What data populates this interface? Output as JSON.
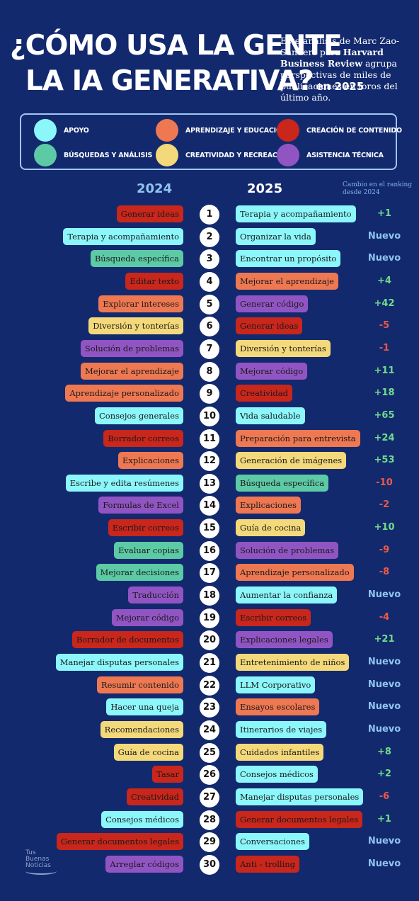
{
  "title": {
    "line1": "¿CÓMO USA LA GENTE",
    "line2": "LA IA GENERATIVA?",
    "year": "en 2025"
  },
  "intro": {
    "part1": "Este análisis de Marc Zao-Sanders para ",
    "bold": "Harvard Business Review",
    "part2": " agrupa perspectivas de miles de publicaciones en foros del último año."
  },
  "colors": {
    "apoyo": "#8cf7fb",
    "aprendizaje": "#ee7852",
    "creacion": "#c9261c",
    "busquedas": "#5dcaa6",
    "creatividad": "#f4d97b",
    "asistencia": "#9155c3"
  },
  "legend": [
    {
      "key": "apoyo",
      "label": "APOYO"
    },
    {
      "key": "aprendizaje",
      "label": "APRENDIZAJE Y EDUCACIÓN"
    },
    {
      "key": "creacion",
      "label": "CREACIÓN DE CONTENIDO"
    },
    {
      "key": "busquedas",
      "label": "BÚSQUEDAS Y ANÁLISIS"
    },
    {
      "key": "creatividad",
      "label": "CREATIVIDAD Y RECREACIÓN"
    },
    {
      "key": "asistencia",
      "label": "ASISTENCIA TÉCNICA"
    }
  ],
  "headers": {
    "y2024": "2024",
    "y2025": "2025",
    "change": "Cambio en el ranking desde 2024"
  },
  "rows": [
    {
      "rank": "1",
      "l": "Generar ideas",
      "lc": "creacion",
      "r": "Terapia y acompañamiento",
      "rc": "apoyo",
      "chg": "+1",
      "t": "up"
    },
    {
      "rank": "2",
      "l": "Terapia y acompañamiento",
      "lc": "apoyo",
      "r": "Organizar la vida",
      "rc": "apoyo",
      "chg": "Nuevo",
      "t": "new"
    },
    {
      "rank": "3",
      "l": "Búsqueda específica",
      "lc": "busquedas",
      "r": "Encontrar un propósito",
      "rc": "apoyo",
      "chg": "Nuevo",
      "t": "new"
    },
    {
      "rank": "4",
      "l": "Editar texto",
      "lc": "creacion",
      "r": "Mejorar el aprendizaje",
      "rc": "aprendizaje",
      "chg": "+4",
      "t": "up"
    },
    {
      "rank": "5",
      "l": "Explorar intereses",
      "lc": "aprendizaje",
      "r": "Generar código",
      "rc": "asistencia",
      "chg": "+42",
      "t": "up"
    },
    {
      "rank": "6",
      "l": "Diversión y tonterías",
      "lc": "creatividad",
      "r": "Generar ideas",
      "rc": "creacion",
      "chg": "-5",
      "t": "down"
    },
    {
      "rank": "7",
      "l": "Solución de problemas",
      "lc": "asistencia",
      "r": "Diversión y tonterías",
      "rc": "creatividad",
      "chg": "-1",
      "t": "down"
    },
    {
      "rank": "8",
      "l": "Mejorar el aprendizaje",
      "lc": "aprendizaje",
      "r": "Mejorar código",
      "rc": "asistencia",
      "chg": "+11",
      "t": "up"
    },
    {
      "rank": "9",
      "l": "Aprendizaje personalizado",
      "lc": "aprendizaje",
      "r": "Creatividad",
      "rc": "creacion",
      "chg": "+18",
      "t": "up"
    },
    {
      "rank": "10",
      "l": "Consejos generales",
      "lc": "apoyo",
      "r": "Vida saludable",
      "rc": "apoyo",
      "chg": "+65",
      "t": "up"
    },
    {
      "rank": "11",
      "l": "Borrador correos",
      "lc": "creacion",
      "r": "Preparación para entrevista",
      "rc": "aprendizaje",
      "chg": "+24",
      "t": "up"
    },
    {
      "rank": "12",
      "l": "Explicaciones",
      "lc": "aprendizaje",
      "r": "Generación de imágenes",
      "rc": "creatividad",
      "chg": "+53",
      "t": "up"
    },
    {
      "rank": "13",
      "l": "Escribe y edita resúmenes",
      "lc": "apoyo",
      "r": "Búsqueda específica",
      "rc": "busquedas",
      "chg": "-10",
      "t": "down"
    },
    {
      "rank": "14",
      "l": "Formulas de Excel",
      "lc": "asistencia",
      "r": "Explicaciones",
      "rc": "aprendizaje",
      "chg": "-2",
      "t": "down"
    },
    {
      "rank": "15",
      "l": "Escribir correos",
      "lc": "creacion",
      "r": "Guía de cocina",
      "rc": "creatividad",
      "chg": "+10",
      "t": "up"
    },
    {
      "rank": "16",
      "l": "Evaluar copias",
      "lc": "busquedas",
      "r": "Solución de problemas",
      "rc": "asistencia",
      "chg": "-9",
      "t": "down"
    },
    {
      "rank": "17",
      "l": "Mejorar decisiones",
      "lc": "busquedas",
      "r": "Aprendizaje personalizado",
      "rc": "aprendizaje",
      "chg": "-8",
      "t": "down"
    },
    {
      "rank": "18",
      "l": "Traducción",
      "lc": "asistencia",
      "r": "Aumentar la confianza",
      "rc": "apoyo",
      "chg": "Nuevo",
      "t": "new"
    },
    {
      "rank": "19",
      "l": "Mejorar código",
      "lc": "asistencia",
      "r": "Escribir correos",
      "rc": "creacion",
      "chg": "-4",
      "t": "down"
    },
    {
      "rank": "20",
      "l": "Borrador de documentos",
      "lc": "creacion",
      "r": "Explicaciones legales",
      "rc": "asistencia",
      "chg": "+21",
      "t": "up"
    },
    {
      "rank": "21",
      "l": "Manejar disputas personales",
      "lc": "apoyo",
      "r": "Entretenimiento de niños",
      "rc": "creatividad",
      "chg": "Nuevo",
      "t": "new"
    },
    {
      "rank": "22",
      "l": "Resumir contenido",
      "lc": "aprendizaje",
      "r": "LLM Corporativo",
      "rc": "apoyo",
      "chg": "Nuevo",
      "t": "new"
    },
    {
      "rank": "23",
      "l": "Hacer una queja",
      "lc": "apoyo",
      "r": "Ensayos escolares",
      "rc": "aprendizaje",
      "chg": "Nuevo",
      "t": "new"
    },
    {
      "rank": "24",
      "l": "Recomendaciones",
      "lc": "creatividad",
      "r": "Itinerarios de viajes",
      "rc": "apoyo",
      "chg": "Nuevo",
      "t": "new"
    },
    {
      "rank": "25",
      "l": "Guía de cocina",
      "lc": "creatividad",
      "r": "Cuidados infantiles",
      "rc": "creatividad",
      "chg": "+8",
      "t": "up"
    },
    {
      "rank": "26",
      "l": "Tasar",
      "lc": "creacion",
      "r": "Consejos médicos",
      "rc": "apoyo",
      "chg": "+2",
      "t": "up"
    },
    {
      "rank": "27",
      "l": "Creatividad",
      "lc": "creacion",
      "r": "Manejar disputas personales",
      "rc": "apoyo",
      "chg": "-6",
      "t": "down"
    },
    {
      "rank": "28",
      "l": "Consejos médicos",
      "lc": "apoyo",
      "r": "Generar documentos legales",
      "rc": "creacion",
      "chg": "+1",
      "t": "up"
    },
    {
      "rank": "29",
      "l": "Generar documentos legales",
      "lc": "creacion",
      "r": "Conversaciones",
      "rc": "apoyo",
      "chg": "Nuevo",
      "t": "new"
    },
    {
      "rank": "30",
      "l": "Arreglar códigos",
      "lc": "asistencia",
      "r": "Anti - trolling",
      "rc": "creacion",
      "chg": "Nuevo",
      "t": "new"
    }
  ],
  "change_colors": {
    "up": "#6fdc8a",
    "down": "#ea5a4a",
    "new": "#8fc4ef"
  },
  "logo": {
    "line1": "Tus",
    "line2": "Buenas",
    "line3": "Noticias"
  }
}
